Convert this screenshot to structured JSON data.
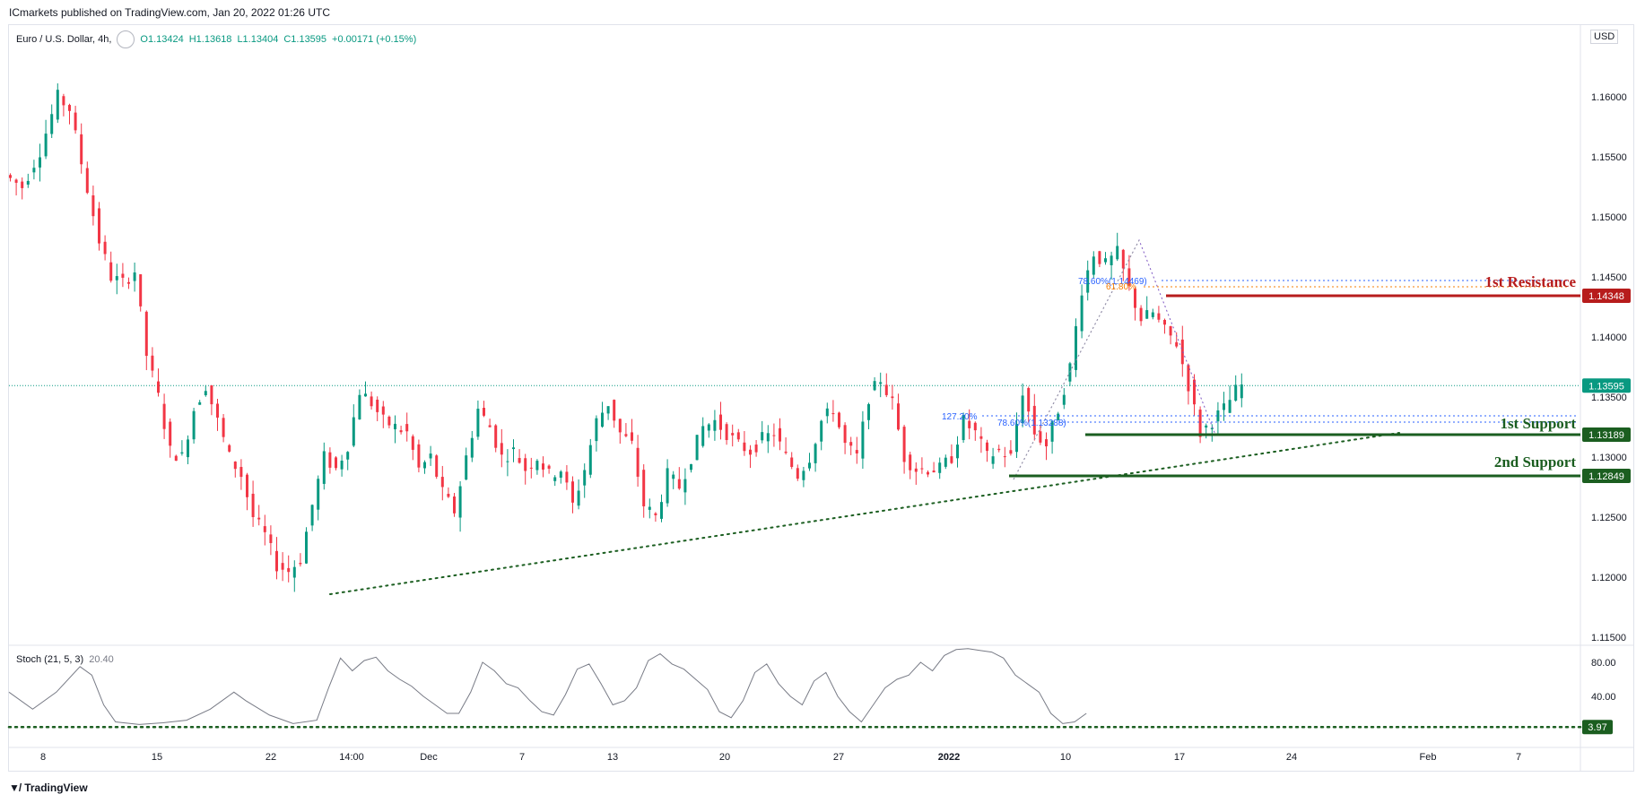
{
  "header": {
    "published": "ICmarkets published on TradingView.com, Jan 20, 2022 01:26 UTC"
  },
  "legend": {
    "symbol": "Euro / U.S. Dollar, 4h,",
    "open": "O1.13424",
    "high": "H1.13618",
    "low": "L1.13404",
    "close": "C1.13595",
    "change": "+0.00171 (+0.15%)"
  },
  "currency_label": "USD",
  "stoch_legend": {
    "name": "Stoch (21, 5, 3)",
    "value": "20.40"
  },
  "footer": {
    "brand": "TradingView"
  },
  "colors": {
    "up": "#089981",
    "down": "#f23645",
    "resistance": "#b71c1c",
    "support": "#1b5e20",
    "fib_blue": "#2962ff",
    "fib_orange": "#f57c00",
    "trend": "#1b5e20"
  },
  "chart_data": {
    "type": "candlestick",
    "symbol": "Euro / U.S. Dollar",
    "interval": "4h",
    "last_price": 1.13595,
    "y_ticks": [
      1.16,
      1.155,
      1.15,
      1.145,
      1.14,
      1.135,
      1.13,
      1.125,
      1.12,
      1.115
    ],
    "y_tick_labels": [
      "1.16000",
      "1.15500",
      "1.15000",
      "1.14500",
      "1.14000",
      "1.13500",
      "1.13000",
      "1.12500",
      "1.12000",
      "1.11500"
    ],
    "x_ticks": [
      "8",
      "15",
      "22",
      "14:00",
      "Dec",
      "7",
      "13",
      "20",
      "27",
      "2022",
      "10",
      "17",
      "24",
      "Feb",
      "7"
    ],
    "close_path": [
      [
        0,
        1.1535
      ],
      [
        3,
        1.1525
      ],
      [
        6,
        1.1555
      ],
      [
        9,
        1.16
      ],
      [
        11,
        1.159
      ],
      [
        13,
        1.1545
      ],
      [
        16,
        1.148
      ],
      [
        18,
        1.145
      ],
      [
        20,
        1.1445
      ],
      [
        22,
        1.1455
      ],
      [
        24,
        1.1385
      ],
      [
        26,
        1.135
      ],
      [
        28,
        1.1305
      ],
      [
        30,
        1.13
      ],
      [
        32,
        1.134
      ],
      [
        34,
        1.136
      ],
      [
        36,
        1.133
      ],
      [
        38,
        1.13
      ],
      [
        40,
        1.1285
      ],
      [
        42,
        1.125
      ],
      [
        44,
        1.1235
      ],
      [
        46,
        1.121
      ],
      [
        48,
        1.1205
      ],
      [
        50,
        1.1215
      ],
      [
        52,
        1.126
      ],
      [
        54,
        1.13
      ],
      [
        56,
        1.129
      ],
      [
        58,
        1.131
      ],
      [
        60,
        1.1355
      ],
      [
        62,
        1.1345
      ],
      [
        64,
        1.133
      ],
      [
        66,
        1.1325
      ],
      [
        68,
        1.132
      ],
      [
        70,
        1.129
      ],
      [
        72,
        1.13
      ],
      [
        74,
        1.127
      ],
      [
        76,
        1.1255
      ],
      [
        78,
        1.13
      ],
      [
        80,
        1.134
      ],
      [
        82,
        1.1325
      ],
      [
        84,
        1.13
      ],
      [
        86,
        1.1305
      ],
      [
        88,
        1.129
      ],
      [
        90,
        1.13
      ],
      [
        92,
        1.1285
      ],
      [
        94,
        1.129
      ],
      [
        96,
        1.126
      ],
      [
        98,
        1.129
      ],
      [
        100,
        1.133
      ],
      [
        102,
        1.1345
      ],
      [
        104,
        1.132
      ],
      [
        106,
        1.131
      ],
      [
        108,
        1.126
      ],
      [
        110,
        1.125
      ],
      [
        112,
        1.1285
      ],
      [
        114,
        1.1275
      ],
      [
        116,
        1.13
      ],
      [
        118,
        1.1325
      ],
      [
        120,
        1.133
      ],
      [
        122,
        1.132
      ],
      [
        124,
        1.131
      ],
      [
        126,
        1.1305
      ],
      [
        128,
        1.1315
      ],
      [
        130,
        1.132
      ],
      [
        132,
        1.13
      ],
      [
        134,
        1.1285
      ],
      [
        136,
        1.13
      ],
      [
        138,
        1.133
      ],
      [
        140,
        1.134
      ],
      [
        142,
        1.131
      ],
      [
        144,
        1.13
      ],
      [
        146,
        1.135
      ],
      [
        148,
        1.1365
      ],
      [
        150,
        1.1345
      ],
      [
        152,
        1.13
      ],
      [
        154,
        1.129
      ],
      [
        156,
        1.129
      ],
      [
        158,
        1.129
      ],
      [
        160,
        1.13
      ],
      [
        162,
        1.133
      ],
      [
        164,
        1.132
      ],
      [
        166,
        1.13
      ],
      [
        168,
        1.1305
      ],
      [
        170,
        1.13
      ],
      [
        172,
        1.1355
      ],
      [
        174,
        1.132
      ],
      [
        176,
        1.131
      ],
      [
        178,
        1.134
      ],
      [
        180,
        1.1375
      ],
      [
        182,
        1.144
      ],
      [
        184,
        1.147
      ],
      [
        186,
        1.146
      ],
      [
        188,
        1.147
      ],
      [
        190,
        1.144
      ],
      [
        192,
        1.1415
      ],
      [
        194,
        1.142
      ],
      [
        196,
        1.1405
      ],
      [
        198,
        1.1395
      ],
      [
        200,
        1.136
      ],
      [
        202,
        1.132
      ],
      [
        204,
        1.133
      ],
      [
        206,
        1.134
      ],
      [
        208,
        1.1355
      ],
      [
        209,
        1.13595
      ]
    ],
    "levels": [
      {
        "label": "1st Resistance",
        "value": 1.14348,
        "price_label": "1.14348"
      },
      {
        "label": "1st Support",
        "value": 1.13189,
        "price_label": "1.13189"
      },
      {
        "label": "2nd Support",
        "value": 1.12849,
        "price_label": "1.12849"
      }
    ],
    "current_price_label": "1.13595",
    "fib_labels": [
      "78.60%(1.14469)",
      "61.80%",
      "127.20%",
      "78.60%(1.13288)"
    ],
    "stochastic": {
      "name": "Stoch (21, 5, 3)",
      "value": 20.4,
      "y_ticks": [
        80,
        40
      ],
      "y_tick_labels": [
        "80.00",
        "40.00"
      ],
      "low_line_label": "3.97",
      "low_line": 3.97,
      "path": [
        [
          0,
          45
        ],
        [
          4,
          25
        ],
        [
          8,
          45
        ],
        [
          12,
          75
        ],
        [
          14,
          65
        ],
        [
          16,
          30
        ],
        [
          18,
          10
        ],
        [
          22,
          7
        ],
        [
          26,
          9
        ],
        [
          30,
          12
        ],
        [
          34,
          25
        ],
        [
          38,
          45
        ],
        [
          40,
          35
        ],
        [
          44,
          18
        ],
        [
          48,
          8
        ],
        [
          52,
          12
        ],
        [
          54,
          50
        ],
        [
          56,
          85
        ],
        [
          58,
          70
        ],
        [
          60,
          82
        ],
        [
          62,
          86
        ],
        [
          64,
          70
        ],
        [
          66,
          60
        ],
        [
          68,
          52
        ],
        [
          70,
          40
        ],
        [
          72,
          30
        ],
        [
          74,
          20
        ],
        [
          76,
          20
        ],
        [
          78,
          45
        ],
        [
          80,
          80
        ],
        [
          82,
          70
        ],
        [
          84,
          55
        ],
        [
          86,
          50
        ],
        [
          88,
          35
        ],
        [
          90,
          22
        ],
        [
          92,
          18
        ],
        [
          94,
          42
        ],
        [
          96,
          72
        ],
        [
          98,
          78
        ],
        [
          100,
          55
        ],
        [
          102,
          30
        ],
        [
          104,
          35
        ],
        [
          106,
          50
        ],
        [
          108,
          82
        ],
        [
          110,
          90
        ],
        [
          112,
          78
        ],
        [
          114,
          72
        ],
        [
          116,
          60
        ],
        [
          118,
          48
        ],
        [
          120,
          22
        ],
        [
          122,
          15
        ],
        [
          124,
          35
        ],
        [
          126,
          68
        ],
        [
          128,
          78
        ],
        [
          130,
          55
        ],
        [
          132,
          40
        ],
        [
          134,
          30
        ],
        [
          136,
          58
        ],
        [
          138,
          68
        ],
        [
          140,
          40
        ],
        [
          142,
          22
        ],
        [
          144,
          10
        ],
        [
          146,
          30
        ],
        [
          148,
          50
        ],
        [
          150,
          60
        ],
        [
          152,
          65
        ],
        [
          154,
          80
        ],
        [
          156,
          70
        ],
        [
          158,
          88
        ],
        [
          160,
          95
        ],
        [
          162,
          96
        ],
        [
          164,
          94
        ],
        [
          166,
          92
        ],
        [
          168,
          85
        ],
        [
          170,
          65
        ],
        [
          172,
          55
        ],
        [
          174,
          45
        ],
        [
          176,
          20
        ],
        [
          178,
          8
        ],
        [
          180,
          10
        ],
        [
          182,
          20
        ]
      ]
    }
  }
}
